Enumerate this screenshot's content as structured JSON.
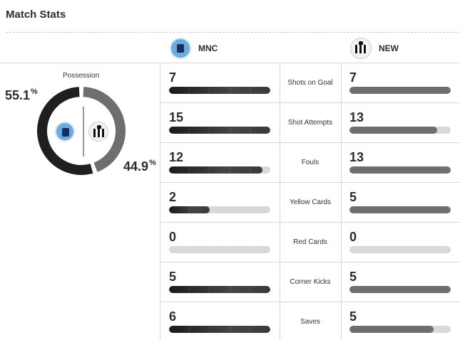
{
  "title": "Match Stats",
  "home": {
    "abbr": "MNC",
    "logo_icon": "manchester-city-crest-icon",
    "color": "#1f1f1f"
  },
  "away": {
    "abbr": "NEW",
    "logo_icon": "newcastle-crest-icon",
    "color": "#6e6e6e"
  },
  "possession": {
    "label": "Possession",
    "home_value": "55.1",
    "away_value": "44.9",
    "unit": "%"
  },
  "stats": [
    {
      "label": "Shots on Goal",
      "home": 7,
      "away": 7,
      "home_fraction": 1.0,
      "away_fraction": 1.0
    },
    {
      "label": "Shot Attempts",
      "home": 15,
      "away": 13,
      "home_fraction": 1.0,
      "away_fraction": 0.867
    },
    {
      "label": "Fouls",
      "home": 12,
      "away": 13,
      "home_fraction": 0.923,
      "away_fraction": 1.0
    },
    {
      "label": "Yellow Cards",
      "home": 2,
      "away": 5,
      "home_fraction": 0.4,
      "away_fraction": 1.0
    },
    {
      "label": "Red Cards",
      "home": 0,
      "away": 0,
      "home_fraction": 0.0,
      "away_fraction": 0.0
    },
    {
      "label": "Corner Kicks",
      "home": 5,
      "away": 5,
      "home_fraction": 1.0,
      "away_fraction": 1.0
    },
    {
      "label": "Saves",
      "home": 6,
      "away": 5,
      "home_fraction": 1.0,
      "away_fraction": 0.833
    }
  ]
}
